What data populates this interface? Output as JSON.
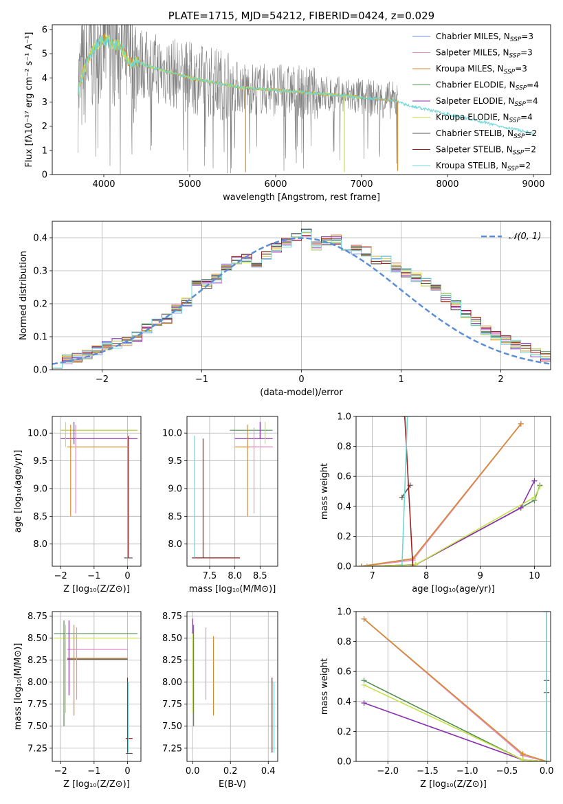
{
  "colors": {
    "chabrier_miles": "#6f8fe0",
    "salpeter_miles": "#e68fc8",
    "kroupa_miles": "#d98a2a",
    "chabrier_elodie": "#4f8f4f",
    "salpeter_elodie": "#8a2fb0",
    "kroupa_elodie": "#c8e04a",
    "chabrier_stelib": "#555555",
    "salpeter_stelib": "#a01f1f",
    "kroupa_stelib": "#6fd6d6",
    "data_grey": "#808080",
    "normal_curve": "#5b8ed6"
  },
  "chart_data": [
    {
      "id": "spectrum",
      "type": "line",
      "title": "PLATE=1715, MJD=54212, FIBERID=0424, z=0.029",
      "xlabel": "wavelength [Angstrom, rest frame]",
      "ylabel": "Flux [fλ10⁻¹⁷ erg cm⁻² s⁻¹ A⁻¹]",
      "xlim": [
        3400,
        9200
      ],
      "ylim": [
        0,
        6.2
      ],
      "xticks": [
        "4000",
        "5000",
        "6000",
        "7000",
        "8000",
        "9000"
      ],
      "yticks": [
        "0",
        "1",
        "2",
        "3",
        "4",
        "5",
        "6"
      ],
      "legend_position": "upper-right",
      "legend": [
        {
          "label": "Chabrier MILES, N",
          "sub": "SSP",
          "suffix": "=3",
          "key": "chabrier_miles"
        },
        {
          "label": "Salpeter MILES, N",
          "sub": "SSP",
          "suffix": "=3",
          "key": "salpeter_miles"
        },
        {
          "label": "Kroupa MILES, N",
          "sub": "SSP",
          "suffix": "=3",
          "key": "kroupa_miles"
        },
        {
          "label": "Chabrier ELODIE, N",
          "sub": "SSP",
          "suffix": "=4",
          "key": "chabrier_elodie"
        },
        {
          "label": "Salpeter ELODIE, N",
          "sub": "SSP",
          "suffix": "=4",
          "key": "salpeter_elodie"
        },
        {
          "label": "Kroupa ELODIE, N",
          "sub": "SSP",
          "suffix": "=4",
          "key": "kroupa_elodie"
        },
        {
          "label": "Chabrier STELIB, N",
          "sub": "SSP",
          "suffix": "=2",
          "key": "chabrier_stelib"
        },
        {
          "label": "Salpeter STELIB, N",
          "sub": "SSP",
          "suffix": "=2",
          "key": "salpeter_stelib"
        },
        {
          "label": "Kroupa STELIB, N",
          "sub": "SSP",
          "suffix": "=2",
          "key": "kroupa_stelib"
        }
      ],
      "model_continuum": {
        "x": [
          3700,
          3760,
          3800,
          3900,
          4000,
          4100,
          4200,
          4300,
          4400,
          4500,
          4700,
          5000,
          5300,
          5600,
          6000,
          6500,
          7000,
          7400,
          7500,
          8000,
          8500,
          9000
        ],
        "y": [
          3.5,
          4.2,
          4.6,
          5.3,
          5.6,
          5.4,
          5.3,
          4.6,
          4.7,
          4.5,
          4.3,
          4.0,
          3.8,
          3.6,
          3.5,
          3.35,
          3.2,
          3.05,
          2.9,
          2.5,
          2.1,
          1.7
        ]
      },
      "stelib_end": 7420,
      "absorption_dips": [
        {
          "x": 5650,
          "y": 0.1,
          "key": "kroupa_miles"
        },
        {
          "x": 6800,
          "y": 0.1,
          "key": "kroupa_elodie"
        },
        {
          "x": 7420,
          "y": 0.15,
          "key": "kroupa_miles"
        }
      ]
    },
    {
      "id": "residuals",
      "type": "line",
      "xlabel": "(data-model)/error",
      "ylabel": "Normed distribution",
      "xlim": [
        -2.5,
        2.5
      ],
      "ylim": [
        0,
        0.45
      ],
      "xticks": [
        "−2",
        "−1",
        "0",
        "1",
        "2"
      ],
      "yticks": [
        "0.0",
        "0.1",
        "0.2",
        "0.3",
        "0.4"
      ],
      "legend_label": "𝒩(0, 1)",
      "bin_width": 0.1,
      "hist_values": [
        0.02,
        0.03,
        0.035,
        0.045,
        0.06,
        0.075,
        0.08,
        0.085,
        0.1,
        0.125,
        0.14,
        0.155,
        0.185,
        0.205,
        0.26,
        0.26,
        0.275,
        0.31,
        0.33,
        0.335,
        0.32,
        0.345,
        0.37,
        0.385,
        0.4,
        0.415,
        0.375,
        0.39,
        0.395,
        0.375,
        0.365,
        0.36,
        0.335,
        0.33,
        0.31,
        0.295,
        0.28,
        0.265,
        0.245,
        0.22,
        0.195,
        0.17,
        0.145,
        0.12,
        0.105,
        0.09,
        0.075,
        0.065,
        0.05,
        0.04,
        0.03
      ]
    },
    {
      "id": "age_vs_Z",
      "type": "scatter",
      "xlabel": "Z [log₁₀(Z/Z⊙)]",
      "ylabel": "age  [log₁₀(age/yr)]",
      "xlim": [
        -2.25,
        0.4
      ],
      "ylim": [
        7.6,
        10.3
      ],
      "xticks": [
        "−2",
        "−1",
        "0"
      ],
      "yticks": [
        "8.0",
        "8.5",
        "9.0",
        "9.5",
        "10.0"
      ],
      "hlines": [
        {
          "y": 10.05,
          "x0": -2.0,
          "x1": 0.3,
          "key": "chabrier_elodie"
        },
        {
          "y": 10.05,
          "x0": -2.0,
          "x1": 0.3,
          "key": "kroupa_elodie"
        },
        {
          "y": 9.9,
          "x0": -2.0,
          "x1": 0.3,
          "key": "salpeter_elodie"
        },
        {
          "y": 9.75,
          "x0": -1.8,
          "x1": 0.0,
          "key": "kroupa_miles"
        },
        {
          "y": 7.75,
          "x0": -0.1,
          "x1": 0.15,
          "key": "chabrier_stelib"
        }
      ],
      "vlines": [
        {
          "x": -1.7,
          "y0": 8.5,
          "y1": 10.15,
          "key": "kroupa_miles"
        },
        {
          "x": -1.55,
          "y0": 8.55,
          "y1": 10.15,
          "key": "salpeter_miles"
        },
        {
          "x": -1.6,
          "y0": 9.8,
          "y1": 10.2,
          "key": "salpeter_elodie"
        },
        {
          "x": -1.85,
          "y0": 9.75,
          "y1": 10.2,
          "key": "kroupa_elodie"
        },
        {
          "x": 0.0,
          "y0": 7.75,
          "y1": 10.0,
          "key": "kroupa_stelib"
        },
        {
          "x": 0.02,
          "y0": 7.75,
          "y1": 9.95,
          "key": "salpeter_stelib"
        }
      ]
    },
    {
      "id": "age_vs_mass",
      "type": "scatter",
      "xlabel": "mass [log₁₀(M/M⊙)]",
      "ylabel": "",
      "xlim": [
        7.05,
        8.85
      ],
      "ylim": [
        7.6,
        10.3
      ],
      "xticks": [
        "7.5",
        "8.0",
        "8.5"
      ],
      "yticks": [
        "8.0",
        "8.5",
        "9.0",
        "9.5",
        "10.0"
      ],
      "hlines": [
        {
          "y": 10.05,
          "x0": 7.9,
          "x1": 8.75,
          "key": "chabrier_elodie"
        },
        {
          "y": 9.9,
          "x0": 8.0,
          "x1": 8.75,
          "key": "salpeter_elodie"
        },
        {
          "y": 9.75,
          "x0": 8.0,
          "x1": 8.75,
          "key": "kroupa_miles"
        },
        {
          "y": 9.75,
          "x0": 8.3,
          "x1": 8.75,
          "key": "salpeter_miles"
        },
        {
          "y": 7.75,
          "x0": 7.15,
          "x1": 8.1,
          "key": "kroupa_stelib"
        },
        {
          "y": 7.75,
          "x0": 7.15,
          "x1": 8.1,
          "key": "salpeter_stelib"
        }
      ],
      "vlines": [
        {
          "x": 8.5,
          "y0": 9.9,
          "y1": 10.2,
          "key": "salpeter_elodie"
        },
        {
          "x": 8.6,
          "y0": 9.8,
          "y1": 10.2,
          "key": "kroupa_elodie"
        },
        {
          "x": 8.25,
          "y0": 8.5,
          "y1": 10.15,
          "key": "kroupa_miles"
        },
        {
          "x": 8.38,
          "y0": 8.55,
          "y1": 10.1,
          "key": "salpeter_miles"
        },
        {
          "x": 7.2,
          "y0": 7.75,
          "y1": 9.95,
          "key": "kroupa_stelib"
        },
        {
          "x": 7.37,
          "y0": 7.75,
          "y1": 9.9,
          "key": "salpeter_stelib"
        }
      ]
    },
    {
      "id": "massweight_vs_age",
      "type": "line",
      "xlabel": "age  [log₁₀(age/yr)]",
      "ylabel": "mass weight",
      "xlim": [
        6.7,
        10.3
      ],
      "ylim": [
        0,
        1.0
      ],
      "xticks": [
        "7",
        "8",
        "9",
        "10"
      ],
      "yticks": [
        "0.0",
        "0.2",
        "0.4",
        "0.6",
        "0.8",
        "1.0"
      ],
      "series": [
        {
          "key": "chabrier_miles",
          "x": [
            6.8,
            7.75,
            9.75
          ],
          "y": [
            0.0,
            0.05,
            0.95
          ]
        },
        {
          "key": "salpeter_miles",
          "x": [
            6.8,
            7.75,
            9.75
          ],
          "y": [
            0.0,
            0.04,
            0.95
          ]
        },
        {
          "key": "kroupa_miles",
          "x": [
            6.8,
            7.75,
            9.75
          ],
          "y": [
            0.0,
            0.05,
            0.95
          ]
        },
        {
          "key": "chabrier_elodie",
          "x": [
            6.9,
            7.8,
            10.0,
            10.1
          ],
          "y": [
            0.0,
            0.01,
            0.44,
            0.54
          ]
        },
        {
          "key": "salpeter_elodie",
          "x": [
            6.9,
            7.8,
            9.75,
            10.0
          ],
          "y": [
            0.0,
            0.01,
            0.39,
            0.57
          ]
        },
        {
          "key": "kroupa_elodie",
          "x": [
            6.9,
            7.8,
            10.0,
            10.1
          ],
          "y": [
            0.0,
            0.01,
            0.46,
            0.53
          ]
        },
        {
          "key": "chabrier_stelib",
          "x": [
            7.55,
            7.7
          ],
          "y": [
            0.46,
            0.54
          ]
        },
        {
          "key": "salpeter_stelib",
          "x": [
            7.6,
            7.75
          ],
          "y": [
            1.0,
            0.0
          ]
        },
        {
          "key": "kroupa_stelib",
          "x": [
            7.55,
            7.65
          ],
          "y": [
            0.0,
            1.0
          ]
        }
      ]
    },
    {
      "id": "mass_vs_Z",
      "type": "scatter",
      "xlabel": "Z [log₁₀(Z/Z⊙)]",
      "ylabel": "mass [log₁₀(M/M⊙)]",
      "xlim": [
        -2.25,
        0.4
      ],
      "ylim": [
        7.1,
        8.8
      ],
      "xticks": [
        "−2",
        "−1",
        "0"
      ],
      "yticks": [
        "7.25",
        "7.50",
        "7.75",
        "8.00",
        "8.25",
        "8.50",
        "8.75"
      ],
      "hlines": [
        {
          "y": 8.55,
          "x0": -2.2,
          "x1": 0.3,
          "key": "chabrier_elodie"
        },
        {
          "y": 8.5,
          "x0": -2.2,
          "x1": 0.3,
          "key": "kroupa_elodie"
        },
        {
          "y": 8.37,
          "x0": -1.8,
          "x1": 0.0,
          "key": "salpeter_miles"
        },
        {
          "y": 8.27,
          "x0": -1.8,
          "x1": 0.0,
          "key": "kroupa_miles"
        },
        {
          "y": 8.26,
          "x0": -1.8,
          "x1": 0.0,
          "key": "chabrier_stelib"
        },
        {
          "y": 7.36,
          "x0": -0.05,
          "x1": 0.15,
          "key": "salpeter_stelib"
        },
        {
          "y": 7.19,
          "x0": -0.05,
          "x1": 0.15,
          "key": "chabrier_stelib"
        }
      ],
      "vlines": [
        {
          "x": -1.9,
          "y0": 7.5,
          "y1": 8.7,
          "key": "chabrier_elodie"
        },
        {
          "x": -1.85,
          "y0": 7.65,
          "y1": 8.65,
          "key": "kroupa_elodie"
        },
        {
          "x": -1.75,
          "y0": 7.85,
          "y1": 8.7,
          "key": "salpeter_elodie"
        },
        {
          "x": -1.6,
          "y0": 7.62,
          "y1": 8.65,
          "key": "kroupa_miles"
        },
        {
          "x": -1.52,
          "y0": 7.8,
          "y1": 8.62,
          "key": "salpeter_miles"
        },
        {
          "x": 0.0,
          "y0": 7.2,
          "y1": 8.05,
          "key": "salpeter_stelib"
        },
        {
          "x": 0.02,
          "y0": 7.2,
          "y1": 8.0,
          "key": "kroupa_stelib"
        }
      ]
    },
    {
      "id": "mass_vs_ebv",
      "type": "scatter",
      "xlabel": "E(B-V)",
      "ylabel": "",
      "xlim": [
        -0.03,
        0.45
      ],
      "ylim": [
        7.1,
        8.8
      ],
      "xticks": [
        "0.0",
        "0.2",
        "0.4"
      ],
      "yticks": [
        "7.25",
        "7.50",
        "7.75",
        "8.00",
        "8.25",
        "8.50",
        "8.75"
      ],
      "vlines": [
        {
          "x": 0.0,
          "y0": 7.65,
          "y1": 8.7,
          "key": "kroupa_elodie"
        },
        {
          "x": 0.005,
          "y0": 7.5,
          "y1": 8.65,
          "key": "chabrier_elodie"
        },
        {
          "x": 0.0,
          "y0": 8.55,
          "y1": 8.72,
          "key": "salpeter_elodie"
        },
        {
          "x": 0.07,
          "y0": 7.8,
          "y1": 8.62,
          "key": "salpeter_miles"
        },
        {
          "x": 0.11,
          "y0": 7.62,
          "y1": 8.52,
          "key": "kroupa_miles"
        },
        {
          "x": 0.42,
          "y0": 7.2,
          "y1": 8.05,
          "key": "salpeter_stelib"
        },
        {
          "x": 0.43,
          "y0": 7.2,
          "y1": 8.0,
          "key": "kroupa_stelib"
        }
      ]
    },
    {
      "id": "massweight_vs_Z",
      "type": "line",
      "xlabel": "Z [log₁₀(Z/Z⊙)]",
      "ylabel": "mass weight",
      "xlim": [
        -2.4,
        0.05
      ],
      "ylim": [
        0,
        1.0
      ],
      "xticks": [
        "−2.0",
        "−1.5",
        "−1.0",
        "−0.5",
        "0.0"
      ],
      "yticks": [
        "0.0",
        "0.2",
        "0.4",
        "0.6",
        "0.8",
        "1.0"
      ],
      "series": [
        {
          "key": "chabrier_miles",
          "x": [
            -2.3,
            -0.3,
            0.0
          ],
          "y": [
            0.95,
            0.04,
            0.0
          ]
        },
        {
          "key": "salpeter_miles",
          "x": [
            -2.3,
            -0.3,
            0.0
          ],
          "y": [
            0.95,
            0.04,
            0.0
          ]
        },
        {
          "key": "kroupa_miles",
          "x": [
            -2.3,
            -0.3,
            0.0
          ],
          "y": [
            0.95,
            0.05,
            0.0
          ]
        },
        {
          "key": "chabrier_elodie",
          "x": [
            -2.3,
            -0.3,
            0.0
          ],
          "y": [
            0.54,
            0.01,
            0.0
          ]
        },
        {
          "key": "salpeter_elodie",
          "x": [
            -2.3,
            -0.3,
            0.0
          ],
          "y": [
            0.39,
            0.01,
            0.0
          ]
        },
        {
          "key": "kroupa_elodie",
          "x": [
            -2.3,
            -0.3,
            0.0
          ],
          "y": [
            0.51,
            0.01,
            0.0
          ]
        },
        {
          "key": "chabrier_stelib",
          "x": [
            0.0,
            0.0
          ],
          "y": [
            0.46,
            0.54
          ]
        },
        {
          "key": "salpeter_stelib",
          "x": [
            0.0,
            0.0
          ],
          "y": [
            0.0,
            1.0
          ]
        },
        {
          "key": "kroupa_stelib",
          "x": [
            0.0,
            0.0
          ],
          "y": [
            0.0,
            1.0
          ]
        }
      ]
    }
  ]
}
